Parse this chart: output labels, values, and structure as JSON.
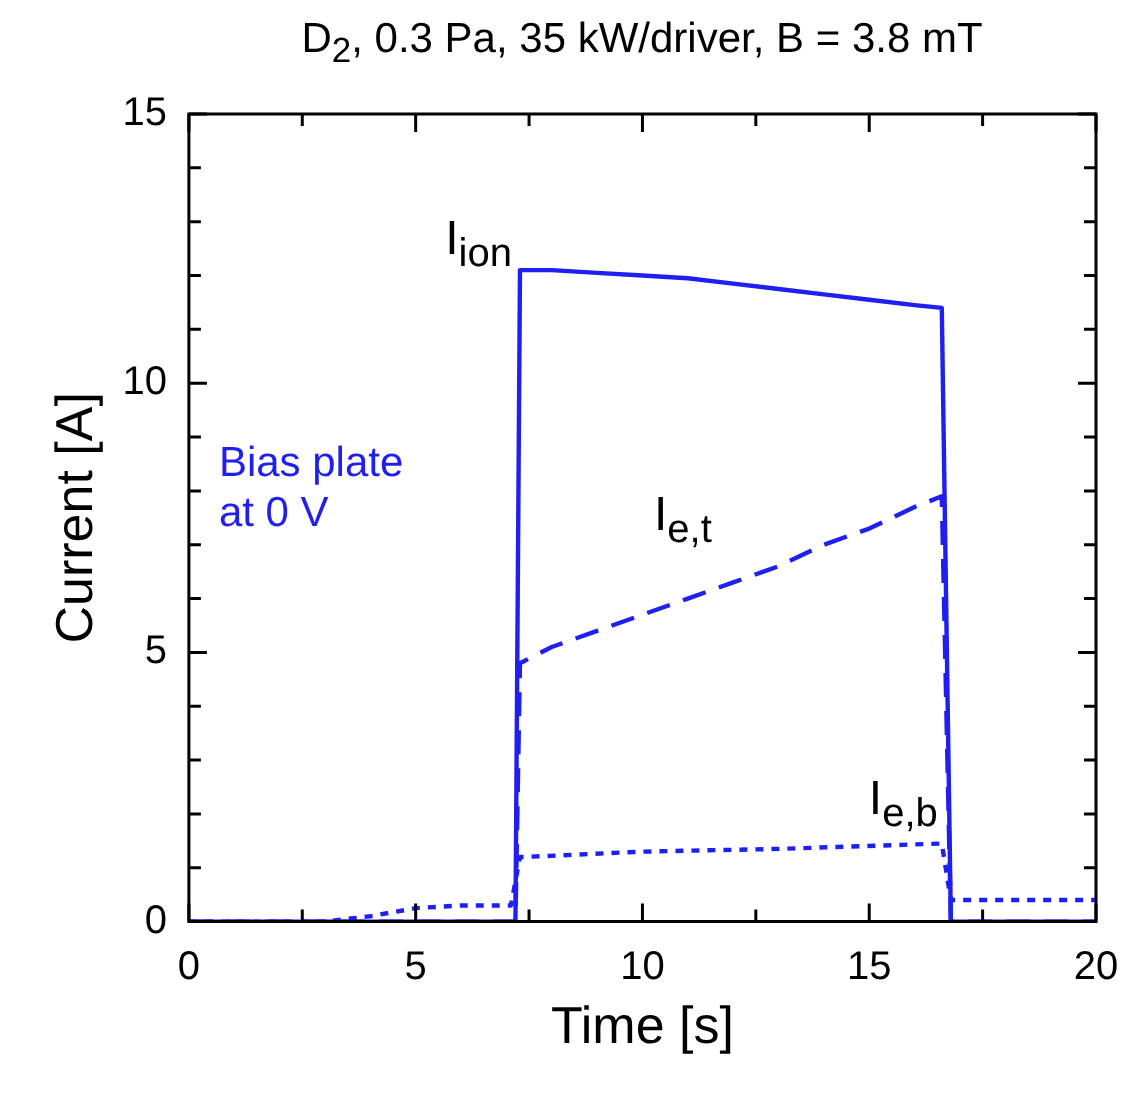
{
  "chart_data": {
    "type": "line",
    "title": "D$_{2}$, 0.3 Pa, 35 kW/driver, B = 3.8 mT",
    "xlabel": "Time [s]",
    "ylabel": "Current [A]",
    "xlim": [
      0,
      20
    ],
    "xticks": [
      0,
      {
        "value": 2.5,
        "label": null
      },
      5,
      {
        "value": 7.5,
        "label": null
      },
      10,
      {
        "value": 12.5,
        "label": null
      },
      15,
      {
        "value": 17.5,
        "label": null
      },
      20
    ],
    "ylim": [
      0,
      15
    ],
    "yticks": [
      0,
      {
        "value": 1,
        "label": null
      },
      {
        "value": 2,
        "label": null
      },
      {
        "value": 3,
        "label": null
      },
      {
        "value": 4,
        "label": null
      },
      5,
      {
        "value": 6,
        "label": null
      },
      {
        "value": 7,
        "label": null
      },
      {
        "value": 8,
        "label": null
      },
      {
        "value": 9,
        "label": null
      },
      10,
      {
        "value": 11,
        "label": null
      },
      {
        "value": 12,
        "label": null
      },
      {
        "value": 13,
        "label": null
      },
      {
        "value": 14,
        "label": null
      },
      15
    ],
    "grid": false,
    "legend": false,
    "marker": "none",
    "series": [
      {
        "name": "I$_{ion}$",
        "color": "#1f1ff2",
        "line_style": "solid",
        "x": [
          0,
          7.2,
          7.3,
          8,
          9,
          10,
          11,
          12,
          13,
          14,
          15,
          16,
          16.6,
          16.8,
          20
        ],
        "values": [
          0,
          0,
          12.1,
          12.1,
          12.05,
          12.0,
          11.95,
          11.85,
          11.75,
          11.65,
          11.55,
          11.45,
          11.4,
          0,
          0
        ]
      },
      {
        "name": "I$_{e,t}$",
        "color": "#1f1ff2",
        "line_style": "dashed",
        "x": [
          0,
          7.2,
          7.3,
          8,
          9,
          10,
          11,
          12,
          13,
          14,
          15,
          16,
          16.6,
          16.8,
          20
        ],
        "values": [
          0,
          0,
          4.8,
          5.1,
          5.4,
          5.7,
          6.0,
          6.3,
          6.6,
          7.0,
          7.3,
          7.7,
          7.9,
          0,
          0
        ]
      },
      {
        "name": "I$_{e,b}$",
        "color": "#1f1ff2",
        "line_style": "dotted",
        "x": [
          0,
          3,
          4,
          5,
          6,
          7.1,
          7.3,
          7.4,
          10,
          13,
          16.6,
          16.8,
          20
        ],
        "values": [
          0,
          0,
          0.1,
          0.25,
          0.3,
          0.3,
          1.2,
          1.2,
          1.3,
          1.35,
          1.45,
          0.4,
          0.4
        ]
      }
    ],
    "annotations": [
      "Bias plate\nat 0 V"
    ]
  }
}
